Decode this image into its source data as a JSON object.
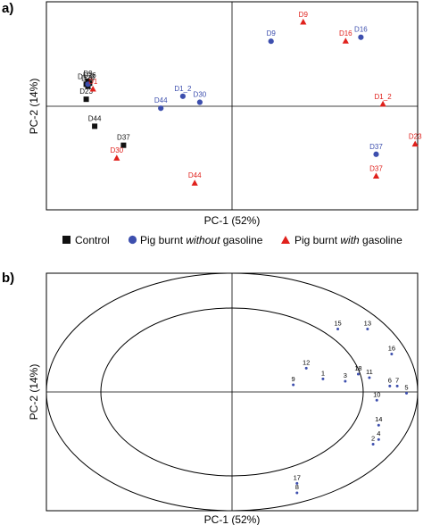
{
  "figure": {
    "panel_a_label": "a)",
    "panel_b_label": "b)",
    "legend": [
      {
        "label": "Control",
        "marker": "square",
        "color": "#111111",
        "italic": ""
      },
      {
        "label": "Pig burnt ",
        "italic": "without",
        "suffix": " gasoline",
        "marker": "circle",
        "color": "#3d4fae"
      },
      {
        "label": "Pig burnt ",
        "italic": "with",
        "suffix": " gasoline",
        "marker": "triangle",
        "color": "#e0211c"
      }
    ]
  },
  "chart_data": [
    {
      "type": "scatter",
      "panel": "a)",
      "xlabel": "PC-1 (52%)",
      "ylabel": "PC-2 (14%)",
      "xlim": [
        -1,
        1
      ],
      "ylim": [
        -1,
        1
      ],
      "grid": false,
      "series": [
        {
          "name": "Control",
          "marker": "square",
          "color": "#111111",
          "points": [
            {
              "label": "D1_2",
              "x": -0.86,
              "y": 0.22
            },
            {
              "label": "D30",
              "x": -0.85,
              "y": 0.2
            },
            {
              "label": "D16",
              "x": -0.84,
              "y": 0.23
            },
            {
              "label": "D9",
              "x": -0.85,
              "y": 0.25
            },
            {
              "label": "D23",
              "x": -0.86,
              "y": 0.07
            },
            {
              "label": "D44",
              "x": -0.81,
              "y": -0.2
            },
            {
              "label": "D37",
              "x": -0.64,
              "y": -0.39
            }
          ]
        },
        {
          "name": "Pig burnt without gasoline",
          "marker": "circle",
          "color": "#3d4fae",
          "points": [
            {
              "label": "D9",
              "x": 0.23,
              "y": 0.65
            },
            {
              "label": "D16",
              "x": 0.76,
              "y": 0.69
            },
            {
              "label": "D1_2",
              "x": -0.29,
              "y": 0.1
            },
            {
              "label": "D30",
              "x": -0.19,
              "y": 0.04
            },
            {
              "label": "D44",
              "x": -0.42,
              "y": -0.02
            },
            {
              "label": "D37",
              "x": 0.85,
              "y": -0.48
            },
            {
              "label": "",
              "x": -0.85,
              "y": 0.22
            }
          ]
        },
        {
          "name": "Pig burnt with gasoline",
          "marker": "triangle",
          "color": "#e0211c",
          "points": [
            {
              "label": "D9",
              "x": 0.42,
              "y": 0.84
            },
            {
              "label": "D16",
              "x": 0.67,
              "y": 0.65
            },
            {
              "label": "D1_2",
              "x": 0.89,
              "y": 0.02
            },
            {
              "label": "D23",
              "x": 1.08,
              "y": -0.38
            },
            {
              "label": "D37",
              "x": 0.85,
              "y": -0.7
            },
            {
              "label": "D44",
              "x": -0.22,
              "y": -0.77
            },
            {
              "label": "D30",
              "x": -0.68,
              "y": -0.52
            },
            {
              "label": "D1",
              "x": -0.82,
              "y": 0.17
            }
          ]
        }
      ]
    },
    {
      "type": "scatter",
      "panel": "b)",
      "xlabel": "PC-1 (52%)",
      "ylabel": "PC-2 (14%)",
      "xlim": [
        -1,
        1
      ],
      "ylim": [
        -1,
        1
      ],
      "grid": false,
      "circles": [
        1.0,
        0.707
      ],
      "series": [
        {
          "name": "",
          "marker": "dot",
          "color": "#3d4fae",
          "points": [
            {
              "label": "1",
              "x": 0.49,
              "y": 0.11
            },
            {
              "label": "2",
              "x": 0.76,
              "y": -0.44
            },
            {
              "label": "3",
              "x": 0.61,
              "y": 0.09
            },
            {
              "label": "4",
              "x": 0.79,
              "y": -0.4
            },
            {
              "label": "5",
              "x": 0.94,
              "y": -0.01
            },
            {
              "label": "6",
              "x": 0.85,
              "y": 0.05
            },
            {
              "label": "7",
              "x": 0.89,
              "y": 0.05
            },
            {
              "label": "8",
              "x": 0.35,
              "y": -0.85
            },
            {
              "label": "9",
              "x": 0.33,
              "y": 0.06
            },
            {
              "label": "10",
              "x": 0.78,
              "y": -0.07
            },
            {
              "label": "11",
              "x": 0.74,
              "y": 0.12
            },
            {
              "label": "12",
              "x": 0.4,
              "y": 0.2
            },
            {
              "label": "13",
              "x": 0.73,
              "y": 0.53
            },
            {
              "label": "14",
              "x": 0.79,
              "y": -0.28
            },
            {
              "label": "15",
              "x": 0.57,
              "y": 0.53
            },
            {
              "label": "16",
              "x": 0.86,
              "y": 0.32
            },
            {
              "label": "17",
              "x": 0.35,
              "y": -0.77
            },
            {
              "label": "18",
              "x": 0.68,
              "y": 0.15
            }
          ]
        }
      ]
    }
  ]
}
